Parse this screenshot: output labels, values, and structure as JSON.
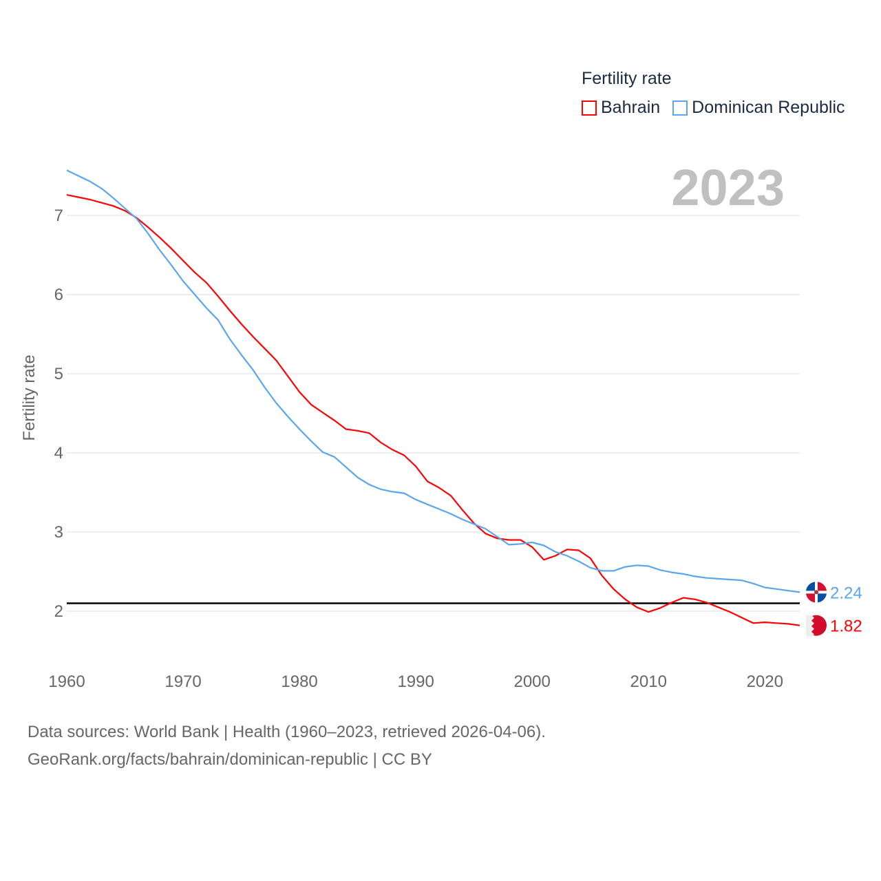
{
  "chart_data": {
    "type": "line",
    "title": "Fertility rate",
    "ylabel": "Fertility rate",
    "xlabel": "",
    "year_label": "2023",
    "xlim": [
      1960,
      2023
    ],
    "ylim": [
      1.4,
      7.6
    ],
    "xticks": [
      1960,
      1970,
      1980,
      1990,
      2000,
      2010,
      2020
    ],
    "yticks": [
      2,
      3,
      4,
      5,
      6,
      7
    ],
    "grid": true,
    "legend_position": "top-right",
    "reference_line": 2.1,
    "x_start": 1960,
    "series": [
      {
        "name": "Bahrain",
        "color": "#ff0000",
        "end_label": "1.82",
        "values": [
          7.26,
          7.23,
          7.2,
          7.16,
          7.12,
          7.06,
          6.97,
          6.85,
          6.72,
          6.58,
          6.43,
          6.28,
          6.15,
          5.98,
          5.8,
          5.63,
          5.47,
          5.32,
          5.17,
          4.97,
          4.77,
          4.61,
          4.51,
          4.41,
          4.3,
          4.28,
          4.25,
          4.13,
          4.04,
          3.97,
          3.83,
          3.64,
          3.56,
          3.46,
          3.28,
          3.11,
          2.98,
          2.92,
          2.9,
          2.9,
          2.81,
          2.65,
          2.7,
          2.78,
          2.77,
          2.67,
          2.45,
          2.28,
          2.15,
          2.05,
          1.99,
          2.04,
          2.11,
          2.17,
          2.15,
          2.11,
          2.05,
          1.99,
          1.92,
          1.85,
          1.86,
          1.85,
          1.84,
          1.82
        ]
      },
      {
        "name": "Dominican Republic",
        "color": "#5aa6ee",
        "end_label": "2.24",
        "values": [
          7.57,
          7.5,
          7.43,
          7.34,
          7.22,
          7.09,
          6.96,
          6.77,
          6.56,
          6.37,
          6.17,
          6.0,
          5.83,
          5.68,
          5.44,
          5.24,
          5.05,
          4.83,
          4.63,
          4.46,
          4.3,
          4.15,
          4.01,
          3.95,
          3.82,
          3.69,
          3.6,
          3.54,
          3.51,
          3.49,
          3.41,
          3.35,
          3.29,
          3.23,
          3.16,
          3.1,
          3.04,
          2.94,
          2.84,
          2.85,
          2.87,
          2.83,
          2.75,
          2.7,
          2.63,
          2.55,
          2.51,
          2.51,
          2.56,
          2.58,
          2.57,
          2.52,
          2.49,
          2.47,
          2.44,
          2.42,
          2.41,
          2.4,
          2.39,
          2.35,
          2.3,
          2.28,
          2.26,
          2.24
        ]
      }
    ]
  },
  "footer": {
    "line1": "Data sources: World Bank | Health (1960–2023, retrieved 2026-04-06).",
    "line2": "GeoRank.org/facts/bahrain/dominican-republic | CC BY"
  }
}
